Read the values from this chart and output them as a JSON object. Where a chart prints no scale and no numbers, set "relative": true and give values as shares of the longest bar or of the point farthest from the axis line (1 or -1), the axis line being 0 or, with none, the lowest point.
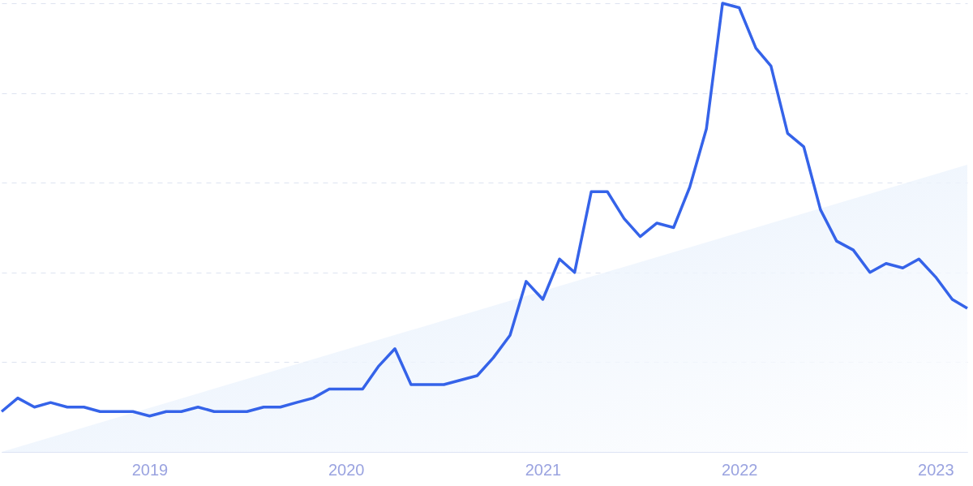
{
  "chart_data": {
    "type": "line",
    "relative": true,
    "grid": "y",
    "marker": "none",
    "line_style": "solid",
    "x": [
      "2018-04",
      "2018-05",
      "2018-06",
      "2018-07",
      "2018-08",
      "2018-09",
      "2018-10",
      "2018-11",
      "2018-12",
      "2019-01",
      "2019-02",
      "2019-03",
      "2019-04",
      "2019-05",
      "2019-06",
      "2019-07",
      "2019-08",
      "2019-09",
      "2019-10",
      "2019-11",
      "2019-12",
      "2020-01",
      "2020-02",
      "2020-03",
      "2020-04",
      "2020-05",
      "2020-06",
      "2020-07",
      "2020-08",
      "2020-09",
      "2020-10",
      "2020-11",
      "2020-12",
      "2021-01",
      "2021-02",
      "2021-03",
      "2021-04",
      "2021-05",
      "2021-06",
      "2021-07",
      "2021-08",
      "2021-09",
      "2021-10",
      "2021-11",
      "2021-12",
      "2022-01",
      "2022-02",
      "2022-03",
      "2022-04",
      "2022-05",
      "2022-06",
      "2022-07",
      "2022-08",
      "2022-09",
      "2022-10",
      "2022-11",
      "2022-12",
      "2023-01",
      "2023-02",
      "2023-03"
    ],
    "xlim": [
      "2018-04",
      "2023-03"
    ],
    "xticks": [
      "2019",
      "2020",
      "2021",
      "2022",
      "2023"
    ],
    "series": [
      {
        "type": "area",
        "color": "#dbe9fb",
        "x": [
          "2018-04",
          "2023-03"
        ],
        "values": [
          0,
          0.64
        ]
      },
      {
        "color": "#3563e9",
        "values": [
          0.09,
          0.12,
          0.1,
          0.11,
          0.1,
          0.1,
          0.09,
          0.09,
          0.09,
          0.08,
          0.09,
          0.09,
          0.1,
          0.09,
          0.09,
          0.09,
          0.1,
          0.1,
          0.11,
          0.12,
          0.14,
          0.14,
          0.14,
          0.19,
          0.23,
          0.15,
          0.15,
          0.15,
          0.16,
          0.17,
          0.21,
          0.26,
          0.38,
          0.34,
          0.43,
          0.4,
          0.58,
          0.58,
          0.52,
          0.48,
          0.51,
          0.5,
          0.59,
          0.72,
          1.0,
          0.99,
          0.9,
          0.86,
          0.71,
          0.68,
          0.54,
          0.47,
          0.45,
          0.4,
          0.42,
          0.41,
          0.43,
          0.39,
          0.34,
          0.32
        ]
      }
    ]
  }
}
